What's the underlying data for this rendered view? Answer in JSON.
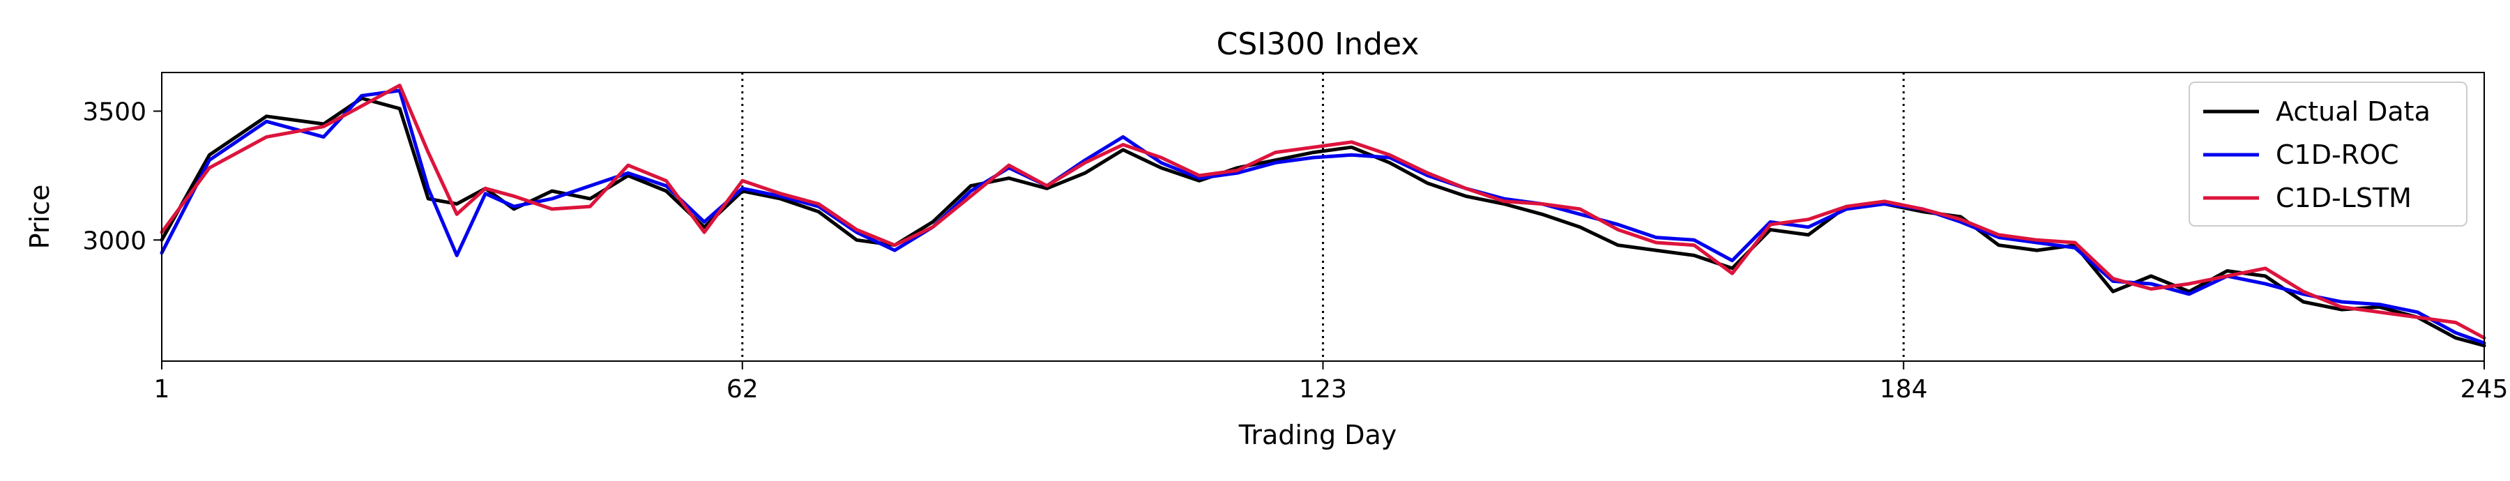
{
  "chart_data": {
    "type": "line",
    "title": "CSI300 Index",
    "xlabel": "Trading Day",
    "ylabel": "Price",
    "xlim": [
      1,
      245
    ],
    "ylim": [
      2530,
      3650
    ],
    "xticks": [
      1,
      62,
      123,
      184,
      245
    ],
    "yticks": [
      3000,
      3500
    ],
    "vlines": [
      62,
      123,
      184
    ],
    "grid": false,
    "legend_position": "top-right",
    "x": [
      1,
      6,
      12,
      18,
      22,
      26,
      29,
      32,
      35,
      38,
      42,
      46,
      50,
      54,
      58,
      62,
      66,
      70,
      74,
      78,
      82,
      86,
      90,
      94,
      98,
      102,
      106,
      110,
      114,
      118,
      122,
      126,
      130,
      134,
      138,
      142,
      146,
      150,
      154,
      158,
      162,
      166,
      170,
      174,
      178,
      182,
      186,
      190,
      194,
      198,
      202,
      206,
      210,
      214,
      218,
      222,
      226,
      230,
      234,
      238,
      242,
      245
    ],
    "series": [
      {
        "name": "Actual Data",
        "color": "#000000",
        "values": [
          3000,
          3330,
          3480,
          3450,
          3550,
          3510,
          3160,
          3140,
          3200,
          3120,
          3190,
          3160,
          3250,
          3190,
          3050,
          3190,
          3160,
          3110,
          3000,
          2980,
          3070,
          3210,
          3240,
          3200,
          3260,
          3350,
          3280,
          3230,
          3280,
          3310,
          3340,
          3360,
          3300,
          3220,
          3170,
          3140,
          3100,
          3050,
          2980,
          2960,
          2940,
          2890,
          3040,
          3020,
          3130,
          3140,
          3110,
          3090,
          2980,
          2960,
          2980,
          2800,
          2860,
          2800,
          2880,
          2860,
          2760,
          2730,
          2740,
          2700,
          2620,
          2590
        ]
      },
      {
        "name": "C1D-ROC",
        "color": "#0000ee",
        "values": [
          2950,
          3310,
          3460,
          3400,
          3560,
          3580,
          3200,
          2940,
          3180,
          3130,
          3160,
          3210,
          3260,
          3210,
          3070,
          3200,
          3170,
          3130,
          3030,
          2960,
          3050,
          3190,
          3280,
          3210,
          3310,
          3400,
          3300,
          3240,
          3260,
          3300,
          3320,
          3330,
          3320,
          3250,
          3200,
          3160,
          3140,
          3100,
          3060,
          3010,
          3000,
          2920,
          3070,
          3050,
          3120,
          3140,
          3120,
          3070,
          3010,
          2990,
          2970,
          2840,
          2830,
          2790,
          2860,
          2830,
          2790,
          2760,
          2750,
          2720,
          2640,
          2600
        ]
      },
      {
        "name": "C1D-LSTM",
        "color": "#dc143c",
        "values": [
          3030,
          3280,
          3400,
          3440,
          3520,
          3600,
          3340,
          3100,
          3200,
          3170,
          3120,
          3130,
          3290,
          3230,
          3030,
          3230,
          3180,
          3140,
          3040,
          2980,
          3050,
          3170,
          3290,
          3210,
          3300,
          3370,
          3320,
          3250,
          3270,
          3340,
          3360,
          3380,
          3330,
          3260,
          3200,
          3150,
          3140,
          3120,
          3040,
          2990,
          2980,
          2870,
          3060,
          3080,
          3130,
          3150,
          3120,
          3080,
          3020,
          3000,
          2990,
          2850,
          2810,
          2830,
          2860,
          2890,
          2800,
          2740,
          2720,
          2700,
          2680,
          2620
        ]
      }
    ]
  }
}
